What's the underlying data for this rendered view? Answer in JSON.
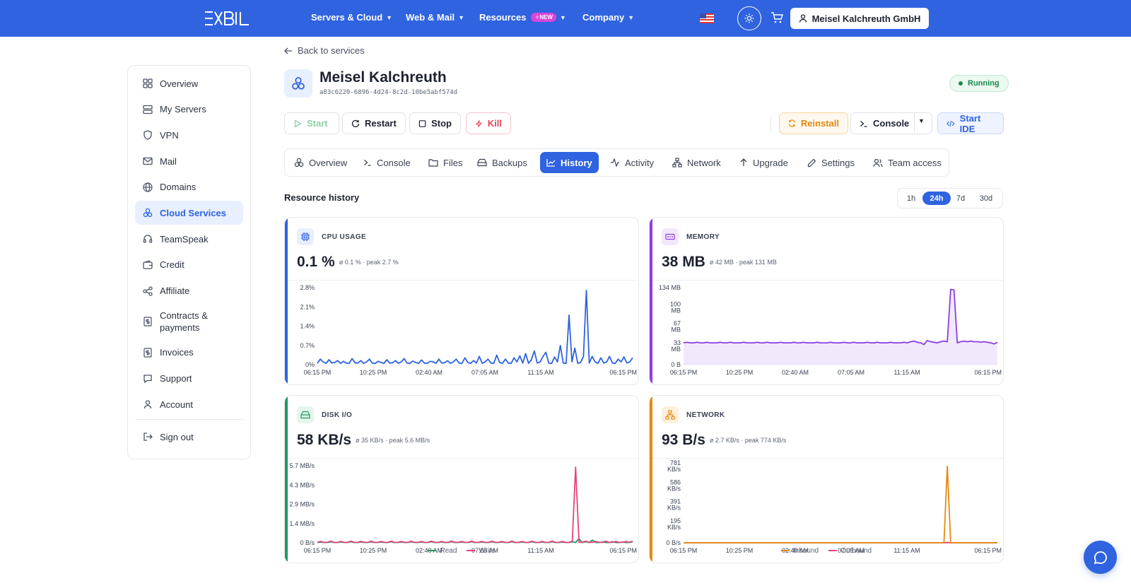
{
  "header": {
    "logo_text": "EXBIL",
    "nav": [
      {
        "label": "Servers & Cloud"
      },
      {
        "label": "Web & Mail"
      },
      {
        "label": "Resources",
        "badge": "NEW"
      },
      {
        "label": "Company"
      }
    ],
    "account_label": "Meisel Kalchreuth GmbH"
  },
  "sidebar": {
    "items": [
      {
        "label": "Overview",
        "icon": "grid-icon"
      },
      {
        "label": "My Servers",
        "icon": "server-icon"
      },
      {
        "label": "VPN",
        "icon": "shield-icon"
      },
      {
        "label": "Mail",
        "icon": "mail-icon"
      },
      {
        "label": "Domains",
        "icon": "globe-icon"
      },
      {
        "label": "Cloud Services",
        "icon": "cloud-nodes-icon"
      },
      {
        "label": "TeamSpeak",
        "icon": "headset-icon"
      },
      {
        "label": "Credit",
        "icon": "wallet-icon"
      },
      {
        "label": "Affiliate",
        "icon": "share-icon"
      },
      {
        "label": "Contracts & payments",
        "icon": "dollar-doc-icon"
      },
      {
        "label": "Invoices",
        "icon": "invoice-icon"
      },
      {
        "label": "Support",
        "icon": "chat-icon"
      },
      {
        "label": "Account",
        "icon": "user-icon"
      }
    ],
    "signout_label": "Sign out"
  },
  "page": {
    "back_label": "Back to services",
    "server_name": "Meisel Kalchreuth",
    "server_uuid": "a83c6220-6896-4d24-8c2d-10be5abf574d",
    "status": "Running"
  },
  "actions": {
    "start": "Start",
    "restart": "Restart",
    "stop": "Stop",
    "kill": "Kill",
    "reinstall": "Reinstall",
    "console": "Console",
    "start_ide": "Start IDE"
  },
  "tabs": [
    "Overview",
    "Console",
    "Files",
    "Backups",
    "History",
    "Activity",
    "Network",
    "Upgrade",
    "Settings",
    "Team access"
  ],
  "active_tab": "History",
  "history": {
    "title": "Resource history",
    "ranges": [
      "1h",
      "24h",
      "7d",
      "30d"
    ],
    "active_range": "24h"
  },
  "colors": {
    "brand": "#2f63e0",
    "cpu": "#2f63e0",
    "memory": "#8a3fe0",
    "disk": "#1f9a5c",
    "network": "#e58a10",
    "write": "#e2447e",
    "outbound": "#e2447e"
  },
  "chart_data": [
    {
      "type": "line",
      "title": "CPU USAGE",
      "current": "0.1 %",
      "summary": "ø 0.1 % · peak 2.7 %",
      "y_ticks": [
        "2.8%",
        "2.1%",
        "1.4%",
        "0.7%",
        "0%"
      ],
      "ylim": [
        0,
        2.8
      ],
      "x_ticks": [
        "06:15 PM",
        "10:25 PM",
        "02:40 AM",
        "07:05 AM",
        "11:15 AM",
        "06:15 PM"
      ],
      "series": [
        {
          "values": [
            0.05,
            0.2,
            0.1,
            0.05,
            0.18,
            0.06,
            0.08,
            0.15,
            0.05,
            0.12,
            0.06,
            0.05,
            0.22,
            0.07,
            0.06,
            0.15,
            0.05,
            0.1,
            0.2,
            0.06,
            0.05,
            0.12,
            0.08,
            0.05,
            0.18,
            0.06,
            0.07,
            0.15,
            0.05,
            0.1,
            0.22,
            0.06,
            0.05,
            0.13,
            0.08,
            0.05,
            0.17,
            0.06,
            0.05,
            0.12,
            0.1,
            0.05,
            0.2,
            0.06,
            0.07,
            0.14,
            0.05,
            0.1,
            0.2,
            0.06,
            0.05,
            0.25,
            0.08,
            0.05,
            0.15,
            0.06,
            0.3,
            0.05,
            0.1,
            0.2,
            0.06,
            0.05,
            0.35,
            0.08,
            0.05,
            0.2,
            0.06,
            0.05,
            0.25,
            0.1,
            0.32,
            0.06,
            0.4,
            0.05,
            0.18,
            0.5,
            0.06,
            0.1,
            0.3,
            0.45,
            0.06,
            0.05,
            0.28,
            0.1,
            0.7,
            0.06,
            0.05,
            1.8,
            0.1,
            0.6,
            0.05,
            0.08,
            0.3,
            2.7,
            0.06,
            0.3,
            0.1,
            0.05,
            0.25,
            0.06,
            0.1,
            0.3,
            0.06,
            0.05,
            0.2,
            0.1,
            0.28,
            0.06,
            0.1,
            0.25
          ]
        }
      ]
    },
    {
      "type": "area",
      "title": "MEMORY",
      "current": "38 MB",
      "summary": "ø 42 MB · peak 131 MB",
      "y_ticks": [
        "134 MB",
        "100 MB",
        "67 MB",
        "33 MB",
        "0 B"
      ],
      "ylim": [
        0,
        134
      ],
      "x_ticks": [
        "06:15 PM",
        "10:25 PM",
        "02:40 AM",
        "07:05 AM",
        "11:15 AM",
        "06:15 PM"
      ],
      "series": [
        {
          "values": [
            38,
            39,
            38,
            38,
            39,
            38,
            38,
            39,
            38,
            38,
            38,
            39,
            38,
            38,
            39,
            38,
            38,
            38,
            39,
            38,
            38,
            38,
            39,
            38,
            38,
            39,
            38,
            38,
            38,
            39,
            38,
            38,
            38,
            39,
            38,
            38,
            39,
            38,
            38,
            38,
            39,
            38,
            38,
            38,
            39,
            38,
            38,
            38,
            39,
            38,
            38,
            39,
            38,
            38,
            38,
            39,
            38,
            38,
            39,
            38,
            38,
            38,
            39,
            38,
            38,
            38,
            39,
            38,
            40,
            41,
            39,
            38,
            35,
            42,
            40,
            39,
            38,
            40,
            41,
            40,
            131,
            130,
            38,
            40,
            41,
            40,
            41,
            40,
            40,
            39,
            40,
            39,
            38,
            36,
            39
          ]
        }
      ]
    },
    {
      "type": "line",
      "title": "DISK I/O",
      "current": "58 KB/s",
      "summary": "ø 35 KB/s · peak 5.6 MB/s",
      "y_ticks": [
        "5.7 MB/s",
        "4.3 MB/s",
        "2.9 MB/s",
        "1.4 MB/s",
        "0 B/s"
      ],
      "ylim": [
        0,
        5.7
      ],
      "x_ticks": [
        "06:15 PM",
        "10:25 PM",
        "02:40 AM",
        "07:05 AM",
        "11:15 AM",
        "06:15 PM"
      ],
      "series": [
        {
          "name": "Read",
          "values": [
            0.02,
            0.05,
            0.02,
            0.02,
            0.08,
            0.02,
            0.02,
            0.06,
            0.02,
            0.02,
            0.08,
            0.02,
            0.02,
            0.06,
            0.02,
            0.02,
            0.08,
            0.02,
            0.02,
            0.06,
            0.02,
            0.02,
            0.08,
            0.02,
            0.02,
            0.06,
            0.02,
            0.02,
            0.08,
            0.02,
            0.02,
            0.06,
            0.02,
            0.02,
            0.08,
            0.02,
            0.02,
            0.06,
            0.02,
            0.02,
            0.08,
            0.02,
            0.02,
            0.06,
            0.02,
            0.02,
            0.08,
            0.02,
            0.02,
            0.06,
            0.02,
            0.02,
            0.08,
            0.02,
            0.02,
            0.06,
            0.02,
            0.02,
            0.08,
            0.02,
            0.02,
            0.06,
            0.02,
            0.02,
            0.08,
            0.02,
            0.02,
            0.06,
            0.02,
            0.02,
            0.08,
            0.02,
            0.02,
            0.06,
            0.02,
            0.02,
            0.08,
            0.02,
            0.3,
            0.02,
            0.08,
            0.02,
            0.2,
            0.02,
            0.02,
            0.06,
            0.02,
            0.02,
            0.08,
            0.02,
            0.02,
            0.06,
            0.02,
            0.02,
            0.08
          ]
        },
        {
          "name": "Write",
          "values": [
            0.03,
            0.1,
            0.03,
            0.03,
            0.12,
            0.03,
            0.03,
            0.1,
            0.03,
            0.03,
            0.12,
            0.03,
            0.03,
            0.1,
            0.03,
            0.03,
            0.12,
            0.03,
            0.03,
            0.1,
            0.03,
            0.03,
            0.12,
            0.03,
            0.03,
            0.1,
            0.03,
            0.03,
            0.12,
            0.03,
            0.03,
            0.1,
            0.03,
            0.03,
            0.12,
            0.03,
            0.03,
            0.1,
            0.03,
            0.03,
            0.12,
            0.03,
            0.03,
            0.1,
            0.03,
            0.03,
            0.12,
            0.03,
            0.03,
            0.1,
            0.03,
            0.03,
            0.12,
            0.03,
            0.03,
            0.1,
            0.03,
            0.03,
            0.12,
            0.03,
            0.03,
            0.1,
            0.03,
            0.03,
            0.12,
            0.03,
            0.03,
            0.1,
            0.03,
            0.03,
            0.12,
            0.03,
            0.03,
            0.1,
            0.03,
            0.03,
            0.12,
            5.6,
            0.03,
            0.03,
            0.12,
            0.03,
            0.03,
            0.1,
            0.03,
            0.03,
            0.12,
            0.03,
            0.03,
            0.1,
            0.03,
            0.03,
            0.1,
            0.03,
            0.12
          ]
        }
      ]
    },
    {
      "type": "line",
      "title": "NETWORK",
      "current": "93 B/s",
      "summary": "ø 2.7 KB/s · peak 774 KB/s",
      "y_ticks": [
        "781 KB/s",
        "586 KB/s",
        "391 KB/s",
        "195 KB/s",
        "0 B/s"
      ],
      "ylim": [
        0,
        781
      ],
      "x_ticks": [
        "06:15 PM",
        "10:25 PM",
        "02:40 AM",
        "07:05 AM",
        "11:15 AM",
        "06:15 PM"
      ],
      "series": [
        {
          "name": "Inbound",
          "values": [
            0,
            1,
            0,
            0,
            1,
            0,
            0,
            1,
            0,
            0,
            1,
            0,
            0,
            1,
            0,
            0,
            1,
            0,
            0,
            1,
            0,
            0,
            1,
            0,
            0,
            1,
            0,
            0,
            1,
            0,
            0,
            1,
            0,
            0,
            1,
            0,
            0,
            1,
            0,
            0,
            1,
            0,
            0,
            1,
            0,
            0,
            1,
            0,
            0,
            1,
            0,
            0,
            1,
            0,
            0,
            1,
            0,
            0,
            1,
            0,
            0,
            1,
            0,
            0,
            1,
            0,
            0,
            1,
            0,
            0,
            1,
            0,
            0,
            1,
            0,
            0,
            1,
            0,
            0,
            774,
            0,
            1,
            0,
            0,
            1,
            0,
            0,
            1,
            0,
            0,
            1,
            0,
            0,
            1,
            0
          ]
        },
        {
          "name": "Outbound",
          "values": [
            0,
            1,
            0,
            0,
            1,
            0,
            0,
            1,
            0,
            0,
            1,
            0,
            0,
            1,
            0,
            0,
            1,
            0,
            0,
            1,
            0,
            0,
            1,
            0,
            0,
            1,
            0,
            0,
            1,
            0,
            0,
            1,
            0,
            0,
            1,
            0,
            0,
            1,
            0,
            0,
            1,
            0,
            0,
            1,
            0,
            0,
            1,
            0,
            0,
            1,
            0,
            0,
            1,
            0,
            0,
            1,
            0,
            0,
            1,
            0,
            0,
            1,
            0,
            0,
            1,
            0,
            0,
            1,
            0,
            0,
            1,
            0,
            0,
            1,
            0,
            0,
            1,
            0,
            0,
            2,
            0,
            1,
            0,
            0,
            1,
            0,
            0,
            1,
            0,
            0,
            1,
            0,
            0,
            1,
            0
          ]
        }
      ]
    }
  ]
}
